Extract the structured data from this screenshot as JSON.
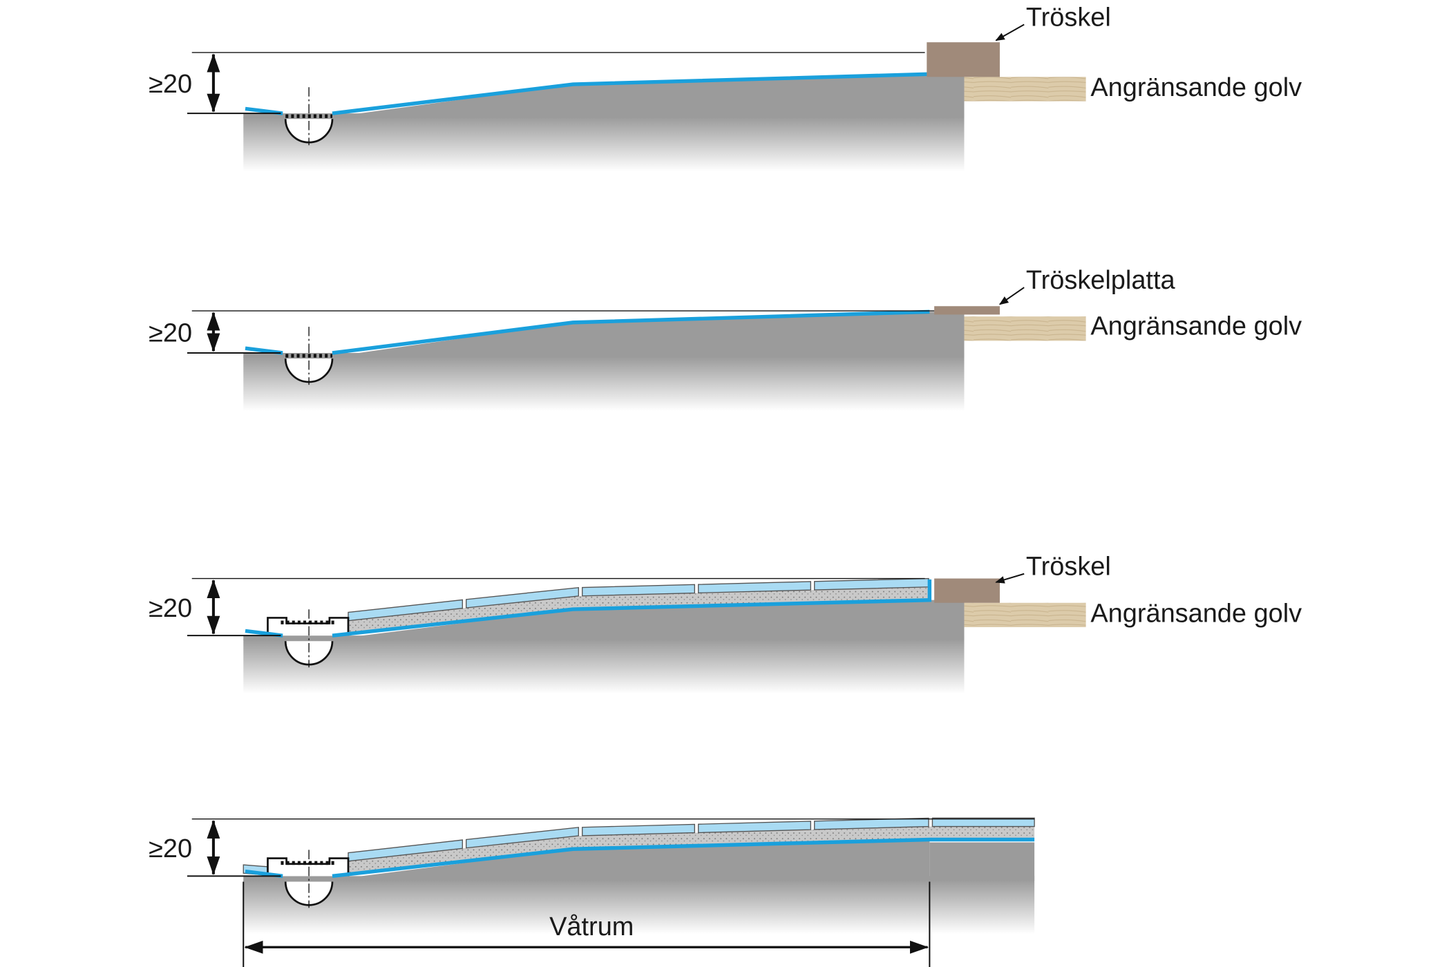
{
  "sections": [
    {
      "dimension": "≥20",
      "threshold_label": "Tröskel",
      "floor_label": "Angränsande golv"
    },
    {
      "dimension": "≥20",
      "threshold_label": "Tröskelplatta",
      "floor_label": "Angränsande golv"
    },
    {
      "dimension": "≥20",
      "threshold_label": "Tröskel",
      "floor_label": "Angränsande golv"
    },
    {
      "dimension": "≥20",
      "span_label": "Våtrum"
    }
  ]
}
